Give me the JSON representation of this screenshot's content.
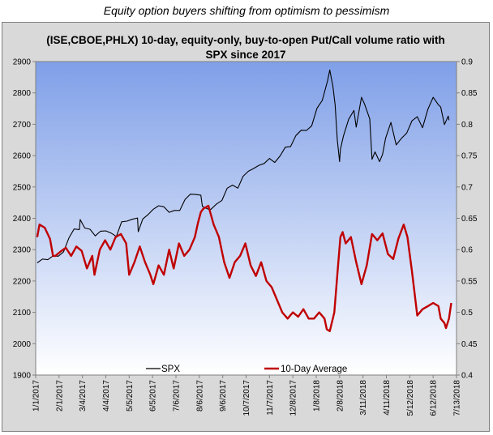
{
  "caption": "Equity option buyers shifting from optimism to pessimism",
  "chart_data": {
    "type": "line",
    "title_lines": [
      "(ISE,CBOE,PHLX) 10-day, equity-only, buy-to-open Put/Call volume ratio with",
      "SPX since 2017"
    ],
    "left_axis": {
      "min": 1900,
      "max": 2900,
      "ticks": [
        "1900",
        "2000",
        "2100",
        "2200",
        "2300",
        "2400",
        "2500",
        "2600",
        "2700",
        "2800",
        "2900"
      ]
    },
    "right_axis": {
      "min": 0.4,
      "max": 0.9,
      "ticks": [
        "0.4",
        "0.45",
        "0.5",
        "0.55",
        "0.6",
        "0.65",
        "0.7",
        "0.75",
        "0.8",
        "0.85",
        "0.9"
      ]
    },
    "x_ticks": [
      "1/1/2017",
      "2/1/2017",
      "3/4/2017",
      "4/4/2017",
      "5/5/2017",
      "6/5/2017",
      "7/6/2017",
      "8/6/2017",
      "9/6/2017",
      "10/7/2017",
      "11/7/2017",
      "12/8/2017",
      "1/8/2018",
      "2/8/2018",
      "3/11/2018",
      "4/11/2018",
      "5/12/2018",
      "6/12/2018",
      "7/13/2018"
    ],
    "x_range": [
      "2017-01-01",
      "2018-07-13"
    ],
    "grid": false,
    "legend_position": "bottom",
    "series": [
      {
        "name": "SPX",
        "axis": "left",
        "color": "#000000",
        "points": [
          [
            "2017-01-03",
            2258
          ],
          [
            "2017-01-10",
            2270
          ],
          [
            "2017-01-17",
            2268
          ],
          [
            "2017-01-24",
            2280
          ],
          [
            "2017-01-31",
            2279
          ],
          [
            "2017-02-07",
            2293
          ],
          [
            "2017-02-14",
            2337
          ],
          [
            "2017-02-21",
            2366
          ],
          [
            "2017-02-28",
            2364
          ],
          [
            "2017-03-01",
            2396
          ],
          [
            "2017-03-07",
            2369
          ],
          [
            "2017-03-14",
            2365
          ],
          [
            "2017-03-21",
            2344
          ],
          [
            "2017-03-28",
            2359
          ],
          [
            "2017-04-04",
            2360
          ],
          [
            "2017-04-11",
            2353
          ],
          [
            "2017-04-18",
            2342
          ],
          [
            "2017-04-25",
            2389
          ],
          [
            "2017-05-02",
            2391
          ],
          [
            "2017-05-09",
            2397
          ],
          [
            "2017-05-16",
            2401
          ],
          [
            "2017-05-17",
            2357
          ],
          [
            "2017-05-23",
            2398
          ],
          [
            "2017-05-30",
            2412
          ],
          [
            "2017-06-06",
            2429
          ],
          [
            "2017-06-13",
            2440
          ],
          [
            "2017-06-20",
            2437
          ],
          [
            "2017-06-27",
            2419
          ],
          [
            "2017-07-04",
            2425
          ],
          [
            "2017-07-11",
            2425
          ],
          [
            "2017-07-18",
            2460
          ],
          [
            "2017-07-25",
            2477
          ],
          [
            "2017-08-01",
            2476
          ],
          [
            "2017-08-08",
            2474
          ],
          [
            "2017-08-10",
            2438
          ],
          [
            "2017-08-17",
            2430
          ],
          [
            "2017-08-21",
            2428
          ],
          [
            "2017-08-29",
            2446
          ],
          [
            "2017-09-05",
            2457
          ],
          [
            "2017-09-12",
            2496
          ],
          [
            "2017-09-19",
            2506
          ],
          [
            "2017-09-26",
            2496
          ],
          [
            "2017-10-03",
            2534
          ],
          [
            "2017-10-10",
            2550
          ],
          [
            "2017-10-17",
            2559
          ],
          [
            "2017-10-24",
            2569
          ],
          [
            "2017-10-31",
            2575
          ],
          [
            "2017-11-07",
            2591
          ],
          [
            "2017-11-14",
            2578
          ],
          [
            "2017-11-21",
            2599
          ],
          [
            "2017-11-28",
            2627
          ],
          [
            "2017-12-05",
            2629
          ],
          [
            "2017-12-12",
            2664
          ],
          [
            "2017-12-19",
            2681
          ],
          [
            "2017-12-26",
            2680
          ],
          [
            "2018-01-02",
            2695
          ],
          [
            "2018-01-09",
            2751
          ],
          [
            "2018-01-16",
            2776
          ],
          [
            "2018-01-23",
            2839
          ],
          [
            "2018-01-26",
            2873
          ],
          [
            "2018-01-30",
            2822
          ],
          [
            "2018-02-02",
            2762
          ],
          [
            "2018-02-05",
            2649
          ],
          [
            "2018-02-08",
            2581
          ],
          [
            "2018-02-09",
            2620
          ],
          [
            "2018-02-13",
            2662
          ],
          [
            "2018-02-20",
            2716
          ],
          [
            "2018-02-27",
            2744
          ],
          [
            "2018-03-02",
            2691
          ],
          [
            "2018-03-09",
            2786
          ],
          [
            "2018-03-13",
            2765
          ],
          [
            "2018-03-20",
            2717
          ],
          [
            "2018-03-23",
            2588
          ],
          [
            "2018-03-27",
            2612
          ],
          [
            "2018-04-02",
            2581
          ],
          [
            "2018-04-06",
            2604
          ],
          [
            "2018-04-10",
            2656
          ],
          [
            "2018-04-17",
            2706
          ],
          [
            "2018-04-24",
            2634
          ],
          [
            "2018-05-01",
            2655
          ],
          [
            "2018-05-08",
            2672
          ],
          [
            "2018-05-15",
            2711
          ],
          [
            "2018-05-22",
            2724
          ],
          [
            "2018-05-29",
            2689
          ],
          [
            "2018-06-05",
            2748
          ],
          [
            "2018-06-12",
            2786
          ],
          [
            "2018-06-19",
            2762
          ],
          [
            "2018-06-22",
            2755
          ],
          [
            "2018-06-27",
            2699
          ],
          [
            "2018-07-02",
            2726
          ],
          [
            "2018-07-03",
            2713
          ]
        ]
      },
      {
        "name": "10-Day Average",
        "axis": "right",
        "color": "#c00000",
        "points": [
          [
            "2017-01-03",
            0.62
          ],
          [
            "2017-01-06",
            0.64
          ],
          [
            "2017-01-13",
            0.635
          ],
          [
            "2017-01-20",
            0.617
          ],
          [
            "2017-01-24",
            0.59
          ],
          [
            "2017-01-27",
            0.59
          ],
          [
            "2017-02-03",
            0.597
          ],
          [
            "2017-02-10",
            0.603
          ],
          [
            "2017-02-17",
            0.59
          ],
          [
            "2017-02-24",
            0.605
          ],
          [
            "2017-03-03",
            0.598
          ],
          [
            "2017-03-10",
            0.57
          ],
          [
            "2017-03-17",
            0.59
          ],
          [
            "2017-03-20",
            0.56
          ],
          [
            "2017-03-27",
            0.6
          ],
          [
            "2017-04-03",
            0.615
          ],
          [
            "2017-04-10",
            0.6
          ],
          [
            "2017-04-17",
            0.62
          ],
          [
            "2017-04-24",
            0.625
          ],
          [
            "2017-05-01",
            0.61
          ],
          [
            "2017-05-05",
            0.56
          ],
          [
            "2017-05-12",
            0.58
          ],
          [
            "2017-05-19",
            0.605
          ],
          [
            "2017-05-26",
            0.58
          ],
          [
            "2017-06-02",
            0.56
          ],
          [
            "2017-06-06",
            0.545
          ],
          [
            "2017-06-13",
            0.575
          ],
          [
            "2017-06-20",
            0.56
          ],
          [
            "2017-06-27",
            0.6
          ],
          [
            "2017-07-03",
            0.57
          ],
          [
            "2017-07-10",
            0.61
          ],
          [
            "2017-07-17",
            0.59
          ],
          [
            "2017-07-24",
            0.6
          ],
          [
            "2017-07-31",
            0.62
          ],
          [
            "2017-08-04",
            0.642
          ],
          [
            "2017-08-08",
            0.66
          ],
          [
            "2017-08-11",
            0.665
          ],
          [
            "2017-08-18",
            0.67
          ],
          [
            "2017-08-25",
            0.64
          ],
          [
            "2017-09-01",
            0.62
          ],
          [
            "2017-09-08",
            0.58
          ],
          [
            "2017-09-15",
            0.555
          ],
          [
            "2017-09-22",
            0.58
          ],
          [
            "2017-09-29",
            0.59
          ],
          [
            "2017-10-06",
            0.61
          ],
          [
            "2017-10-13",
            0.575
          ],
          [
            "2017-10-20",
            0.558
          ],
          [
            "2017-10-27",
            0.58
          ],
          [
            "2017-11-03",
            0.55
          ],
          [
            "2017-11-10",
            0.54
          ],
          [
            "2017-11-17",
            0.52
          ],
          [
            "2017-11-24",
            0.5
          ],
          [
            "2017-12-01",
            0.49
          ],
          [
            "2017-12-08",
            0.5
          ],
          [
            "2017-12-15",
            0.493
          ],
          [
            "2017-12-22",
            0.505
          ],
          [
            "2017-12-29",
            0.49
          ],
          [
            "2018-01-05",
            0.49
          ],
          [
            "2018-01-12",
            0.5
          ],
          [
            "2018-01-19",
            0.49
          ],
          [
            "2018-01-22",
            0.473
          ],
          [
            "2018-01-26",
            0.47
          ],
          [
            "2018-02-01",
            0.5
          ],
          [
            "2018-02-05",
            0.56
          ],
          [
            "2018-02-09",
            0.62
          ],
          [
            "2018-02-12",
            0.628
          ],
          [
            "2018-02-16",
            0.61
          ],
          [
            "2018-02-23",
            0.62
          ],
          [
            "2018-03-02",
            0.58
          ],
          [
            "2018-03-09",
            0.545
          ],
          [
            "2018-03-16",
            0.575
          ],
          [
            "2018-03-23",
            0.625
          ],
          [
            "2018-03-30",
            0.615
          ],
          [
            "2018-04-06",
            0.626
          ],
          [
            "2018-04-13",
            0.593
          ],
          [
            "2018-04-20",
            0.585
          ],
          [
            "2018-04-27",
            0.618
          ],
          [
            "2018-05-04",
            0.64
          ],
          [
            "2018-05-09",
            0.62
          ],
          [
            "2018-05-15",
            0.565
          ],
          [
            "2018-05-22",
            0.495
          ],
          [
            "2018-05-29",
            0.505
          ],
          [
            "2018-06-05",
            0.51
          ],
          [
            "2018-06-12",
            0.515
          ],
          [
            "2018-06-19",
            0.51
          ],
          [
            "2018-06-22",
            0.49
          ],
          [
            "2018-06-27",
            0.483
          ],
          [
            "2018-06-29",
            0.475
          ],
          [
            "2018-07-03",
            0.49
          ],
          [
            "2018-07-06",
            0.515
          ]
        ]
      }
    ]
  }
}
